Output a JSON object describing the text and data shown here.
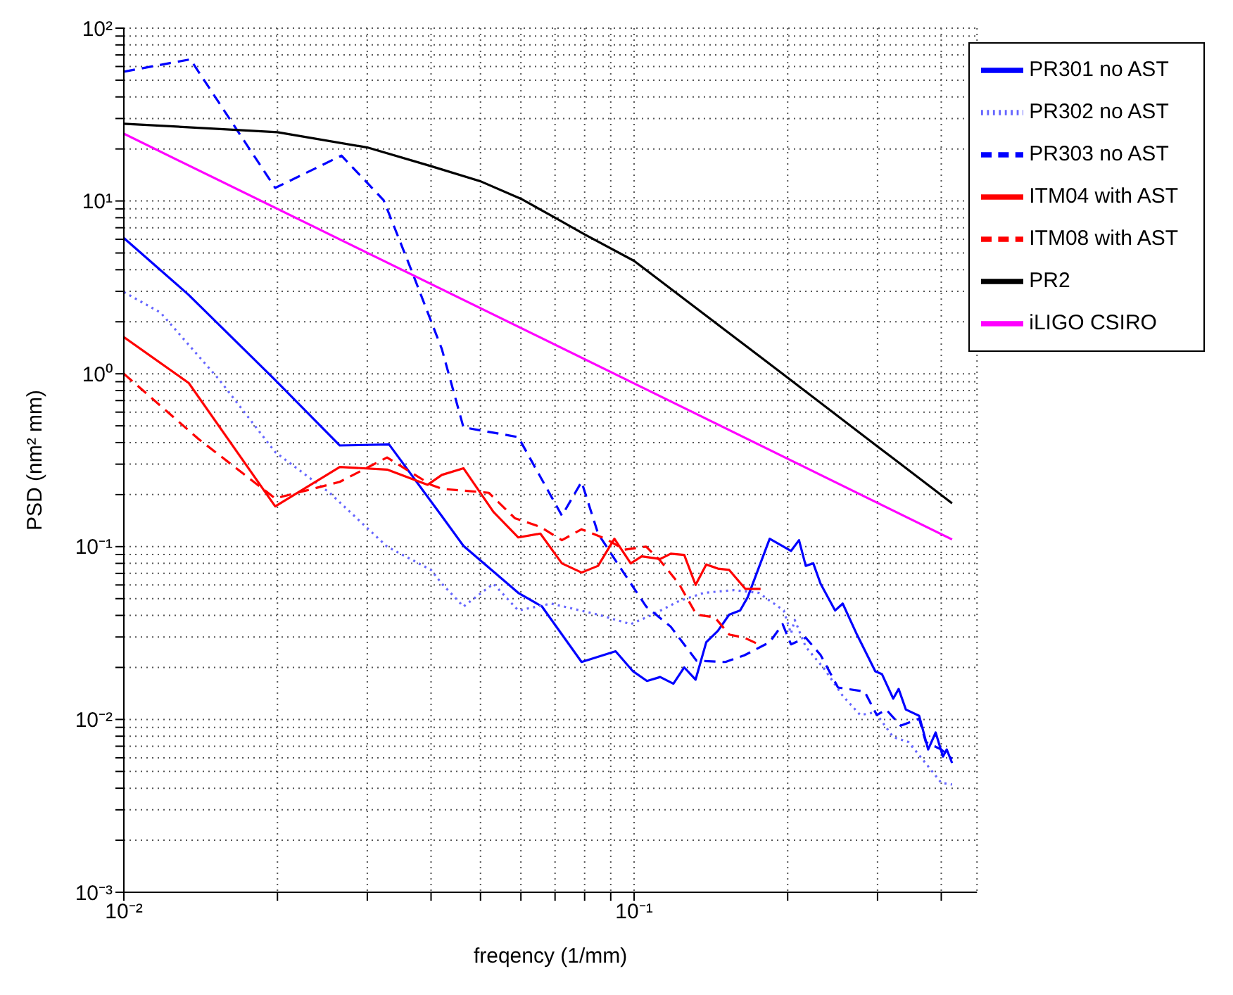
{
  "chart_data": {
    "type": "line",
    "xlabel": "freqency (1/mm)",
    "ylabel": "PSD (nm² mm)",
    "log": "xy",
    "grid": true,
    "legend": "top right",
    "marker": "none",
    "xlim": [
      0.01,
      0.47
    ],
    "ylim": [
      0.001,
      100
    ],
    "xticks": [
      {
        "value": 0.01,
        "label": "10⁻²"
      },
      {
        "value": 0.02,
        "label": null
      },
      {
        "value": 0.03,
        "label": null
      },
      {
        "value": 0.04,
        "label": null
      },
      {
        "value": 0.05,
        "label": null
      },
      {
        "value": 0.06,
        "label": null
      },
      {
        "value": 0.07,
        "label": null
      },
      {
        "value": 0.08,
        "label": null
      },
      {
        "value": 0.09,
        "label": null
      },
      {
        "value": 0.1,
        "label": "10⁻¹"
      },
      {
        "value": 0.2,
        "label": null
      },
      {
        "value": 0.3,
        "label": null
      },
      {
        "value": 0.4,
        "label": null
      }
    ],
    "yticks": [
      {
        "value": 0.001,
        "label": "10⁻³"
      },
      {
        "value": 0.002,
        "label": null
      },
      {
        "value": 0.003,
        "label": null
      },
      {
        "value": 0.004,
        "label": null
      },
      {
        "value": 0.005,
        "label": null
      },
      {
        "value": 0.006,
        "label": null
      },
      {
        "value": 0.007,
        "label": null
      },
      {
        "value": 0.008,
        "label": null
      },
      {
        "value": 0.009,
        "label": null
      },
      {
        "value": 0.01,
        "label": "10⁻²"
      },
      {
        "value": 0.02,
        "label": null
      },
      {
        "value": 0.03,
        "label": null
      },
      {
        "value": 0.04,
        "label": null
      },
      {
        "value": 0.05,
        "label": null
      },
      {
        "value": 0.06,
        "label": null
      },
      {
        "value": 0.07,
        "label": null
      },
      {
        "value": 0.08,
        "label": null
      },
      {
        "value": 0.09,
        "label": null
      },
      {
        "value": 0.1,
        "label": "10⁻¹"
      },
      {
        "value": 0.2,
        "label": null
      },
      {
        "value": 0.3,
        "label": null
      },
      {
        "value": 0.4,
        "label": null
      },
      {
        "value": 0.5,
        "label": null
      },
      {
        "value": 0.6,
        "label": null
      },
      {
        "value": 0.7,
        "label": null
      },
      {
        "value": 0.8,
        "label": null
      },
      {
        "value": 0.9,
        "label": null
      },
      {
        "value": 1,
        "label": "10⁰"
      },
      {
        "value": 2,
        "label": null
      },
      {
        "value": 3,
        "label": null
      },
      {
        "value": 4,
        "label": null
      },
      {
        "value": 5,
        "label": null
      },
      {
        "value": 6,
        "label": null
      },
      {
        "value": 7,
        "label": null
      },
      {
        "value": 8,
        "label": null
      },
      {
        "value": 9,
        "label": null
      },
      {
        "value": 10,
        "label": "10¹"
      },
      {
        "value": 20,
        "label": null
      },
      {
        "value": 30,
        "label": null
      },
      {
        "value": 40,
        "label": null
      },
      {
        "value": 50,
        "label": null
      },
      {
        "value": 60,
        "label": null
      },
      {
        "value": 70,
        "label": null
      },
      {
        "value": 80,
        "label": null
      },
      {
        "value": 90,
        "label": null
      },
      {
        "value": 100,
        "label": "10²"
      }
    ],
    "series": [
      {
        "name": "PR301 no AST",
        "color": "#0000ff",
        "line_style": "solid",
        "x": [
          0.01,
          0.0134,
          0.0198,
          0.0265,
          0.0331,
          0.042,
          0.0463,
          0.0593,
          0.066,
          0.0789,
          0.092,
          0.0995,
          0.106,
          0.1125,
          0.1194,
          0.1254,
          0.132,
          0.1385,
          0.146,
          0.1536,
          0.1614,
          0.167,
          0.1844,
          0.203,
          0.2105,
          0.217,
          0.2245,
          0.232,
          0.2477,
          0.2564,
          0.2735,
          0.297,
          0.306,
          0.322,
          0.33,
          0.341,
          0.362,
          0.377,
          0.39,
          0.403,
          0.41,
          0.42
        ],
        "values": [
          6.1,
          2.86,
          0.92,
          0.385,
          0.39,
          0.15,
          0.101,
          0.054,
          0.045,
          0.0215,
          0.0248,
          0.019,
          0.0167,
          0.0176,
          0.0161,
          0.02,
          0.017,
          0.028,
          0.0326,
          0.0404,
          0.0427,
          0.051,
          0.111,
          0.0944,
          0.109,
          0.0774,
          0.08,
          0.061,
          0.0427,
          0.0468,
          0.0309,
          0.019,
          0.0183,
          0.0132,
          0.015,
          0.0114,
          0.0105,
          0.0067,
          0.0084,
          0.0061,
          0.0067,
          0.0056
        ]
      },
      {
        "name": "PR302 no AST",
        "color": "#6666ff",
        "line_style": "dotted",
        "x": [
          0.01,
          0.0118,
          0.0154,
          0.0198,
          0.0253,
          0.0328,
          0.04,
          0.042,
          0.0463,
          0.053,
          0.0593,
          0.0688,
          0.085,
          0.0985,
          0.1087,
          0.1224,
          0.137,
          0.1567,
          0.1755,
          0.1965,
          0.203,
          0.2065,
          0.217,
          0.236,
          0.2564,
          0.2775,
          0.297,
          0.322,
          0.345,
          0.38,
          0.4,
          0.42
        ],
        "values": [
          2.97,
          2.26,
          0.92,
          0.352,
          0.205,
          0.1,
          0.0733,
          0.061,
          0.045,
          0.061,
          0.0427,
          0.0468,
          0.0404,
          0.0356,
          0.0404,
          0.0484,
          0.054,
          0.056,
          0.054,
          0.0427,
          0.0314,
          0.0376,
          0.0263,
          0.0196,
          0.0137,
          0.0106,
          0.011,
          0.0079,
          0.0074,
          0.0052,
          0.0043,
          0.0042
        ]
      },
      {
        "name": "PR303 no AST",
        "color": "#0000ff",
        "line_style": "dashed",
        "x": [
          0.01,
          0.0135,
          0.0198,
          0.0267,
          0.0323,
          0.0367,
          0.042,
          0.0463,
          0.0593,
          0.0722,
          0.0789,
          0.085,
          0.092,
          0.1056,
          0.118,
          0.1325,
          0.151,
          0.1645,
          0.1844,
          0.1955,
          0.203,
          0.217,
          0.232,
          0.251,
          0.283,
          0.299,
          0.312,
          0.333,
          0.362,
          0.373,
          0.4,
          0.42
        ],
        "values": [
          56,
          66,
          11.9,
          18.3,
          10.1,
          3.9,
          1.39,
          0.49,
          0.43,
          0.151,
          0.237,
          0.119,
          0.083,
          0.045,
          0.0344,
          0.0219,
          0.0215,
          0.0235,
          0.028,
          0.0356,
          0.0272,
          0.0297,
          0.0236,
          0.0153,
          0.0145,
          0.0106,
          0.0114,
          0.0092,
          0.0101,
          0.0074,
          0.0067,
          0.0059
        ]
      },
      {
        "name": "ITM04 with AST",
        "color": "#ff0000",
        "line_style": "solid",
        "x": [
          0.01,
          0.0134,
          0.0198,
          0.0265,
          0.0328,
          0.0394,
          0.042,
          0.0463,
          0.053,
          0.0593,
          0.0655,
          0.0722,
          0.0789,
          0.085,
          0.0915,
          0.0985,
          0.1035,
          0.1125,
          0.118,
          0.1254,
          0.132,
          0.1385,
          0.146,
          0.1536,
          0.1653,
          0.177
        ],
        "values": [
          1.63,
          0.885,
          0.171,
          0.289,
          0.279,
          0.228,
          0.26,
          0.284,
          0.159,
          0.113,
          0.119,
          0.08,
          0.0708,
          0.0774,
          0.111,
          0.08,
          0.0879,
          0.0848,
          0.091,
          0.0895,
          0.06,
          0.0788,
          0.0746,
          0.0733,
          0.0569,
          0.0569
        ]
      },
      {
        "name": "ITM08 with AST",
        "color": "#ff0000",
        "line_style": "dashed",
        "x": [
          0.01,
          0.014,
          0.0198,
          0.0265,
          0.0328,
          0.04,
          0.042,
          0.0519,
          0.0584,
          0.0655,
          0.0722,
          0.0789,
          0.088,
          0.0957,
          0.1056,
          0.1125,
          0.1224,
          0.1325,
          0.1439,
          0.1536,
          0.1645,
          0.1755
        ],
        "values": [
          1.0,
          0.42,
          0.19,
          0.237,
          0.328,
          0.228,
          0.216,
          0.205,
          0.146,
          0.13,
          0.109,
          0.126,
          0.111,
          0.096,
          0.1,
          0.083,
          0.061,
          0.0404,
          0.039,
          0.031,
          0.0297,
          0.0272
        ]
      },
      {
        "name": "PR2",
        "color": "#000000",
        "line_style": "solid",
        "x": [
          0.01,
          0.02,
          0.03,
          0.04,
          0.05,
          0.06,
          0.07,
          0.08,
          0.1,
          0.2,
          0.3,
          0.42
        ],
        "values": [
          28,
          25,
          20.4,
          15.9,
          13,
          10.3,
          8,
          6.4,
          4.5,
          0.95,
          0.38,
          0.178
        ]
      },
      {
        "name": "iLIGO CSIRO",
        "color": "#ff00ff",
        "line_style": "solid",
        "x": [
          0.01,
          0.1,
          0.42
        ],
        "values": [
          24.5,
          0.88,
          0.11
        ]
      }
    ]
  }
}
